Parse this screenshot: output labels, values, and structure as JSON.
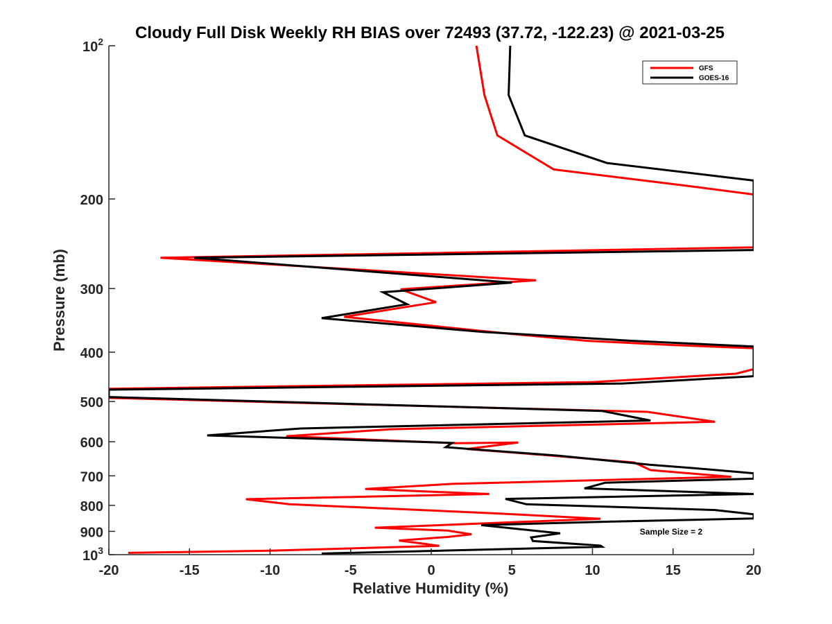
{
  "chart_data": {
    "type": "line",
    "title": "Cloudy Full Disk Weekly RH BIAS over 72493 (37.72, -122.23) @ 2021-03-25",
    "xlabel": "Relative Humidity (%)",
    "ylabel": "Pressure (mb)",
    "xlim": [
      -20,
      20
    ],
    "ylim": [
      100,
      1000
    ],
    "y_scale": "log",
    "y_reversed": true,
    "grid": false,
    "legend_position": "top-right",
    "x_ticks": [
      {
        "value": -20,
        "label": "-20"
      },
      {
        "value": -15,
        "label": "-15"
      },
      {
        "value": -10,
        "label": "-10"
      },
      {
        "value": -5,
        "label": "-5"
      },
      {
        "value": 0,
        "label": "0"
      },
      {
        "value": 5,
        "label": "5"
      },
      {
        "value": 10,
        "label": "10"
      },
      {
        "value": 15,
        "label": "15"
      },
      {
        "value": 20,
        "label": "20"
      }
    ],
    "y_ticks": [
      {
        "value": 100,
        "label": "10",
        "sup": "2"
      },
      {
        "value": 200,
        "label": "200",
        "sup": ""
      },
      {
        "value": 300,
        "label": "300",
        "sup": ""
      },
      {
        "value": 400,
        "label": "400",
        "sup": ""
      },
      {
        "value": 500,
        "label": "500",
        "sup": ""
      },
      {
        "value": 600,
        "label": "600",
        "sup": ""
      },
      {
        "value": 700,
        "label": "700",
        "sup": ""
      },
      {
        "value": 800,
        "label": "800",
        "sup": ""
      },
      {
        "value": 900,
        "label": "900",
        "sup": ""
      },
      {
        "value": 1000,
        "label": "10",
        "sup": "3"
      }
    ],
    "annotation": "Sample Size = 2",
    "series": [
      {
        "name": "GFS",
        "color": "#ff0000",
        "points": [
          [
            2.8,
            100
          ],
          [
            3.3,
            125
          ],
          [
            4.1,
            150
          ],
          [
            7.6,
            175
          ],
          [
            15.6,
            188
          ],
          [
            20.0,
            196
          ],
          [
            20.0,
            249
          ],
          [
            -16.8,
            261
          ],
          [
            6.5,
            289
          ],
          [
            -1.9,
            301
          ],
          [
            0.3,
            319
          ],
          [
            -5.4,
            341
          ],
          [
            4.8,
            368
          ],
          [
            9.7,
            380
          ],
          [
            14.7,
            387
          ],
          [
            20.0,
            393
          ],
          [
            20.0,
            432
          ],
          [
            18.9,
            441
          ],
          [
            10.0,
            458
          ],
          [
            -20.0,
            472
          ],
          [
            -20.0,
            492
          ],
          [
            13.4,
            524
          ],
          [
            17.6,
            548
          ],
          [
            -2.5,
            567
          ],
          [
            -9.0,
            585
          ],
          [
            1.5,
            604
          ],
          [
            5.4,
            602
          ],
          [
            2.2,
            620
          ],
          [
            7.0,
            637
          ],
          [
            12.6,
            659
          ],
          [
            13.6,
            682
          ],
          [
            18.6,
            703
          ],
          [
            1.3,
            726
          ],
          [
            -4.1,
            743
          ],
          [
            3.6,
            760
          ],
          [
            -11.5,
            778
          ],
          [
            -8.8,
            796
          ],
          [
            3.8,
            829
          ],
          [
            10.5,
            850
          ],
          [
            -3.5,
            885
          ],
          [
            1.0,
            897
          ],
          [
            2.5,
            912
          ],
          [
            1.0,
            923
          ],
          [
            -2.0,
            938
          ],
          [
            -0.3,
            953
          ],
          [
            0.5,
            961
          ],
          [
            -10.0,
            982
          ],
          [
            -18.8,
            992
          ]
        ]
      },
      {
        "name": "GOES-16",
        "color": "#000000",
        "points": [
          [
            4.9,
            100
          ],
          [
            4.8,
            125
          ],
          [
            5.8,
            150
          ],
          [
            10.9,
            170
          ],
          [
            20.0,
            184
          ],
          [
            20.0,
            252
          ],
          [
            -14.7,
            261
          ],
          [
            5.0,
            292
          ],
          [
            -3.0,
            305
          ],
          [
            -1.5,
            322
          ],
          [
            -6.8,
            343
          ],
          [
            3.2,
            365
          ],
          [
            12.5,
            380
          ],
          [
            20.0,
            390
          ],
          [
            20.0,
            446
          ],
          [
            11.8,
            461
          ],
          [
            -20.0,
            474
          ],
          [
            -20.0,
            490
          ],
          [
            10.6,
            522
          ],
          [
            13.6,
            545
          ],
          [
            -8.1,
            565
          ],
          [
            -13.9,
            583
          ],
          [
            1.3,
            603
          ],
          [
            0.9,
            615
          ],
          [
            7.9,
            639
          ],
          [
            13.6,
            666
          ],
          [
            16.3,
            676
          ],
          [
            20.0,
            692
          ],
          [
            20.0,
            709
          ],
          [
            10.8,
            722
          ],
          [
            9.5,
            741
          ],
          [
            20.0,
            760
          ],
          [
            4.6,
            777
          ],
          [
            5.9,
            796
          ],
          [
            17.6,
            817
          ],
          [
            20.0,
            833
          ],
          [
            20.0,
            849
          ],
          [
            11.2,
            861
          ],
          [
            3.1,
            875
          ],
          [
            5.5,
            891
          ],
          [
            8.0,
            908
          ],
          [
            6.2,
            925
          ],
          [
            6.3,
            940
          ],
          [
            10.5,
            960
          ],
          [
            10.6,
            965
          ],
          [
            -6.8,
            995
          ]
        ]
      }
    ]
  }
}
